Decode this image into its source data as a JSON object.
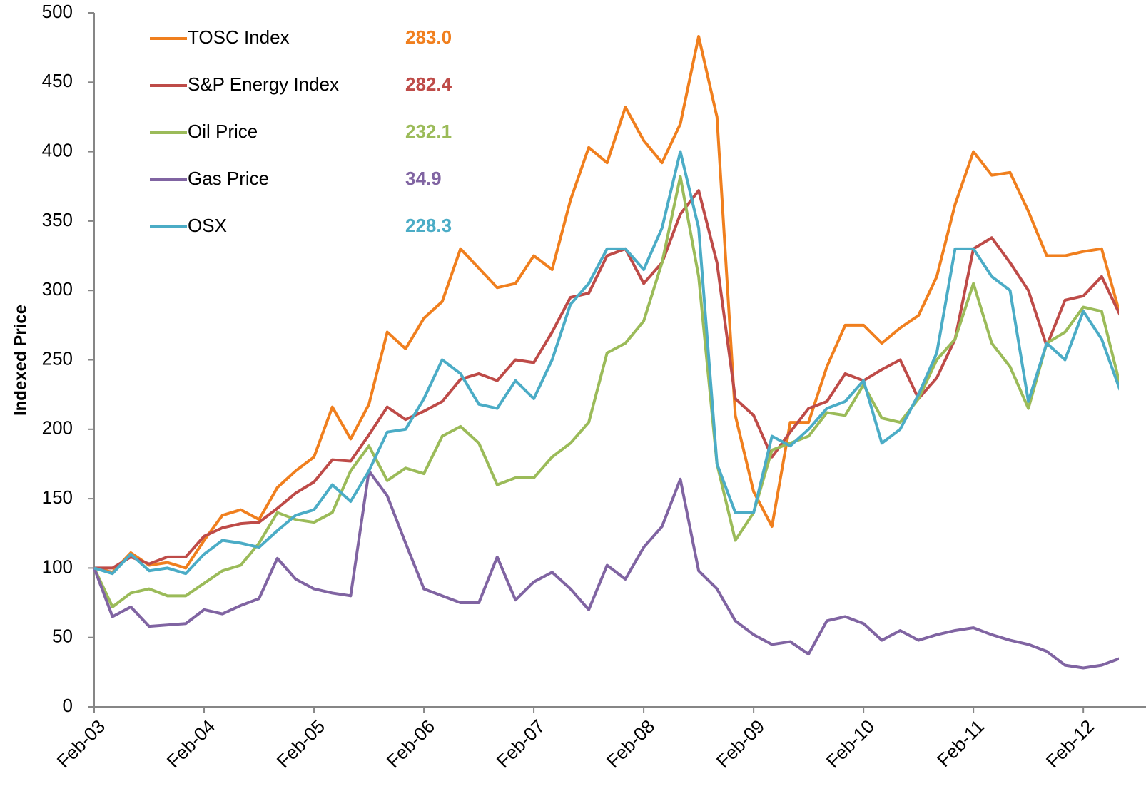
{
  "chart_data": {
    "type": "line",
    "ylabel": "Indexed Price",
    "categories": [
      "Feb-03",
      null,
      null,
      null,
      null,
      null,
      "Feb-04",
      null,
      null,
      null,
      null,
      null,
      "Feb-05",
      null,
      null,
      null,
      null,
      null,
      "Feb-06",
      null,
      null,
      null,
      null,
      null,
      "Feb-07",
      null,
      null,
      null,
      null,
      null,
      "Feb-08",
      null,
      null,
      null,
      null,
      null,
      "Feb-09",
      null,
      null,
      null,
      null,
      null,
      "Feb-10",
      null,
      null,
      null,
      null,
      null,
      "Feb-11",
      null,
      null,
      null,
      null,
      null,
      "Feb-12",
      null,
      null
    ],
    "ylim": [
      0,
      500
    ],
    "yticks": [
      0,
      50,
      100,
      150,
      200,
      250,
      300,
      350,
      400,
      450,
      500
    ],
    "legend": "upper left",
    "series": [
      {
        "name": "TOSC Index",
        "color": "#F07F1E",
        "legend_value": "283.0",
        "values": [
          100,
          97,
          111,
          102,
          104,
          100,
          120,
          138,
          142,
          135,
          158,
          170,
          180,
          216,
          193,
          218,
          270,
          258,
          280,
          292,
          330,
          316,
          302,
          305,
          325,
          315,
          365,
          403,
          392,
          432,
          408,
          392,
          420,
          483,
          425,
          210,
          155,
          130,
          205,
          205,
          245,
          275,
          275,
          262,
          273,
          282,
          310,
          362,
          400,
          383,
          385,
          357,
          325,
          325,
          328,
          330,
          283
        ]
      },
      {
        "name": "S&P Energy Index",
        "color": "#BE4B48",
        "legend_value": "282.4",
        "values": [
          100,
          100,
          108,
          103,
          108,
          108,
          123,
          129,
          132,
          133,
          143,
          154,
          162,
          178,
          177,
          196,
          216,
          207,
          213,
          220,
          236,
          240,
          235,
          250,
          248,
          270,
          295,
          298,
          325,
          330,
          305,
          320,
          355,
          372,
          320,
          222,
          210,
          180,
          198,
          215,
          220,
          240,
          235,
          243,
          250,
          222,
          237,
          265,
          330,
          338,
          320,
          300,
          260,
          293,
          296,
          310,
          282.4
        ]
      },
      {
        "name": "Oil Price",
        "color": "#9BBB59",
        "legend_value": "232.1",
        "values": [
          100,
          72,
          82,
          85,
          80,
          80,
          89,
          98,
          102,
          118,
          140,
          135,
          133,
          140,
          170,
          188,
          163,
          172,
          168,
          195,
          202,
          190,
          160,
          165,
          165,
          180,
          190,
          205,
          255,
          262,
          278,
          320,
          382,
          310,
          175,
          120,
          140,
          185,
          190,
          195,
          212,
          210,
          232,
          208,
          205,
          222,
          250,
          265,
          305,
          262,
          245,
          215,
          262,
          270,
          288,
          285,
          232.1
        ]
      },
      {
        "name": "Gas Price",
        "color": "#8064A2",
        "legend_value": "34.9",
        "values": [
          100,
          65,
          72,
          58,
          59,
          60,
          70,
          67,
          73,
          78,
          107,
          92,
          85,
          82,
          80,
          170,
          152,
          118,
          85,
          80,
          75,
          75,
          108,
          77,
          90,
          97,
          85,
          70,
          102,
          92,
          115,
          130,
          164,
          98,
          85,
          62,
          52,
          45,
          47,
          38,
          62,
          65,
          60,
          48,
          55,
          48,
          52,
          55,
          57,
          52,
          48,
          45,
          40,
          30,
          28,
          30,
          34.9
        ]
      },
      {
        "name": "OSX",
        "color": "#4BACC6",
        "legend_value": "228.3",
        "values": [
          100,
          96,
          110,
          98,
          100,
          96,
          110,
          120,
          118,
          115,
          127,
          138,
          142,
          160,
          148,
          170,
          198,
          200,
          222,
          250,
          240,
          218,
          215,
          235,
          222,
          250,
          290,
          305,
          330,
          330,
          315,
          345,
          400,
          345,
          175,
          140,
          140,
          195,
          188,
          200,
          215,
          220,
          235,
          190,
          200,
          225,
          255,
          330,
          330,
          310,
          300,
          220,
          262,
          250,
          285,
          265,
          228.3
        ]
      }
    ]
  }
}
